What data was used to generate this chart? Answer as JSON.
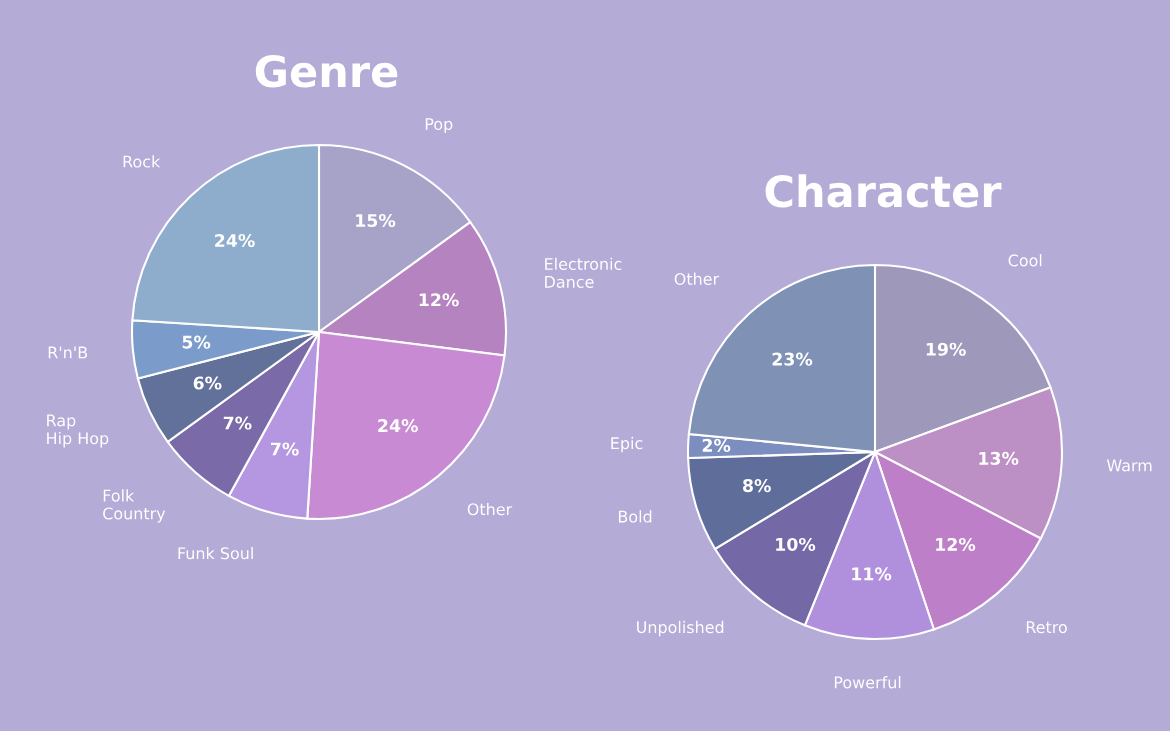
{
  "chart_data": [
    {
      "type": "pie",
      "title": "Genre",
      "categories": [
        "Pop",
        "Electronic\nDance",
        "Other",
        "Funk Soul",
        "Folk\nCountry",
        "Rap\nHip Hop",
        "R'n'B",
        "Rock"
      ],
      "values": [
        15,
        12,
        24,
        7,
        7,
        6,
        5,
        24
      ],
      "value_labels": [
        "15%",
        "12%",
        "24%",
        "7%",
        "7%",
        "6%",
        "5%",
        "24%"
      ],
      "colors": [
        "#a7a3c8",
        "#b583c0",
        "#c88ad3",
        "#b596e0",
        "#7a6aa8",
        "#62719a",
        "#7b9ccb",
        "#8eaccc"
      ]
    },
    {
      "type": "pie",
      "title": "Character",
      "categories": [
        "Cool",
        "Warm",
        "Retro",
        "Powerful",
        "Unpolished",
        "Bold",
        "Epic",
        "Other"
      ],
      "values": [
        19,
        13,
        12,
        11,
        10,
        8,
        2,
        23
      ],
      "value_labels": [
        "19%",
        "13%",
        "12%",
        "11%",
        "10%",
        "8%",
        "2%",
        "23%"
      ],
      "colors": [
        "#9e98bb",
        "#bc8fc5",
        "#bd80c8",
        "#b090dc",
        "#7468a6",
        "#5f6d9a",
        "#7c8ec0",
        "#7f92b5"
      ]
    }
  ]
}
